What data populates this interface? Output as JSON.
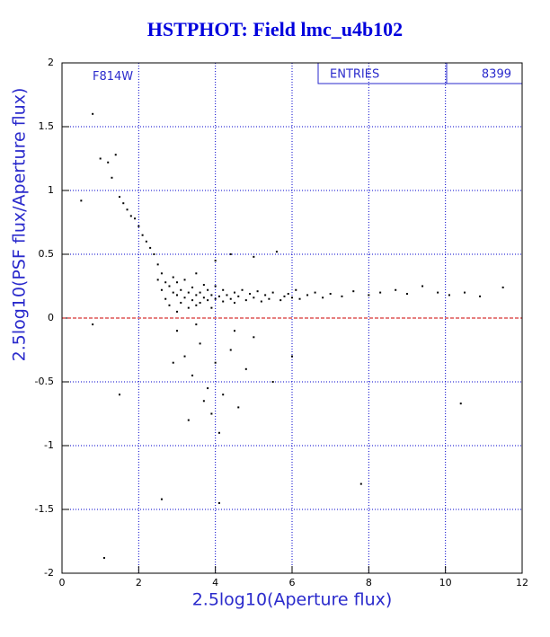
{
  "chart_data": {
    "type": "scatter",
    "title": "HSTPHOT: Field lmc_u4b102",
    "annotation": "F814W",
    "stats": {
      "label": "ENTRIES",
      "value": 8399
    },
    "xlabel": "2.5log10(Aperture flux)",
    "ylabel": "2.5log10(PSF flux/Aperture flux)",
    "xlim": [
      0,
      12
    ],
    "xticks": [
      0,
      2,
      4,
      6,
      8,
      10,
      12
    ],
    "ylim": [
      -2,
      2
    ],
    "yticks": [
      -2,
      -1.5,
      -1,
      -0.5,
      0,
      0.5,
      1,
      1.5,
      2
    ],
    "grid": true,
    "grid_color": "#0000cc",
    "color": "#000000",
    "reference_line": 0,
    "reference_color": "#cc0000",
    "x": [
      0.5,
      0.8,
      1.0,
      1.2,
      1.3,
      1.4,
      1.5,
      1.6,
      1.7,
      1.8,
      1.9,
      2.0,
      2.1,
      2.2,
      2.3,
      2.4,
      2.5,
      2.5,
      2.6,
      2.6,
      2.7,
      2.7,
      2.8,
      2.8,
      2.9,
      2.9,
      3.0,
      3.0,
      3.0,
      3.1,
      3.1,
      3.2,
      3.2,
      3.3,
      3.3,
      3.4,
      3.4,
      3.5,
      3.5,
      3.5,
      3.6,
      3.6,
      3.7,
      3.7,
      3.8,
      3.8,
      3.9,
      3.9,
      4.0,
      4.0,
      4.0,
      4.1,
      4.2,
      4.2,
      4.3,
      4.4,
      4.4,
      4.5,
      4.5,
      4.6,
      4.7,
      4.8,
      4.9,
      5.0,
      5.0,
      5.1,
      5.2,
      5.3,
      5.4,
      5.5,
      5.6,
      5.7,
      5.8,
      5.9,
      6.0,
      6.1,
      6.2,
      6.4,
      6.6,
      6.8,
      7.0,
      7.3,
      7.6,
      8.0,
      8.3,
      8.7,
      9.0,
      9.4,
      9.8,
      10.1,
      10.5,
      10.9,
      11.5,
      3.0,
      3.2,
      3.4,
      3.6,
      3.8,
      4.0,
      4.2,
      4.4,
      4.6,
      4.8,
      5.0,
      5.5,
      6.0,
      3.3,
      3.7,
      4.1,
      4.5,
      2.9,
      3.5,
      3.9,
      0.8,
      1.1,
      1.5,
      2.6,
      4.1,
      7.8,
      10.4
    ],
    "values": [
      0.92,
      1.6,
      1.25,
      1.22,
      1.1,
      1.28,
      0.95,
      0.9,
      0.85,
      0.8,
      0.78,
      0.72,
      0.65,
      0.6,
      0.55,
      0.5,
      0.42,
      0.3,
      0.35,
      0.22,
      0.28,
      0.15,
      0.25,
      0.1,
      0.2,
      0.32,
      0.18,
      0.05,
      0.28,
      0.22,
      0.12,
      0.16,
      0.3,
      0.2,
      0.08,
      0.24,
      0.14,
      0.18,
      0.1,
      0.35,
      0.2,
      0.12,
      0.16,
      0.26,
      0.14,
      0.22,
      0.18,
      0.08,
      0.15,
      0.25,
      0.45,
      0.17,
      0.13,
      0.22,
      0.18,
      0.15,
      0.5,
      0.2,
      0.12,
      0.17,
      0.22,
      0.14,
      0.19,
      0.16,
      0.48,
      0.21,
      0.13,
      0.18,
      0.15,
      0.2,
      0.52,
      0.14,
      0.17,
      0.19,
      0.16,
      0.22,
      0.15,
      0.18,
      0.2,
      0.16,
      0.19,
      0.17,
      0.21,
      0.18,
      0.2,
      0.22,
      0.19,
      0.25,
      0.2,
      0.18,
      0.2,
      0.17,
      0.24,
      -0.1,
      -0.3,
      -0.45,
      -0.2,
      -0.55,
      -0.35,
      -0.6,
      -0.25,
      -0.7,
      -0.4,
      -0.15,
      -0.5,
      -0.3,
      -0.8,
      -0.65,
      -0.9,
      -0.1,
      -0.35,
      -0.05,
      -0.75,
      -0.05,
      -1.88,
      -0.6,
      -1.42,
      -1.45,
      -1.3,
      -0.67
    ]
  }
}
